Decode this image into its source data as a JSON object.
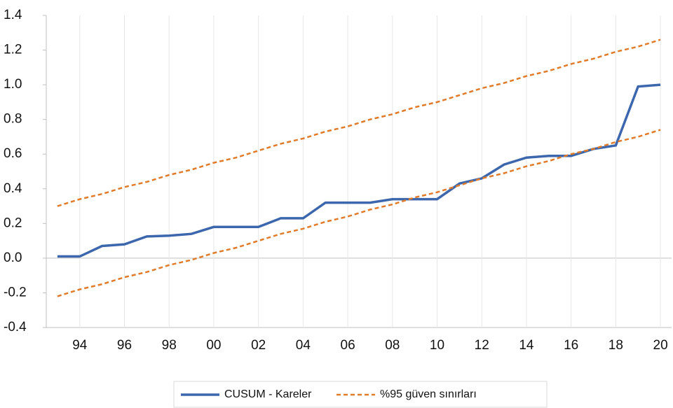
{
  "chart_data": {
    "type": "line",
    "categories": [
      null,
      "94",
      null,
      "96",
      null,
      "98",
      null,
      "00",
      null,
      "02",
      null,
      "04",
      null,
      "06",
      null,
      "08",
      null,
      "10",
      null,
      "12",
      null,
      "14",
      null,
      "16",
      null,
      "18",
      null,
      "20"
    ],
    "series": [
      {
        "name": "CUSUM - Kareler",
        "color": "#3d67ac",
        "dash": "solid",
        "values": [
          0.01,
          0.01,
          0.07,
          0.08,
          0.125,
          0.13,
          0.14,
          0.18,
          0.18,
          0.18,
          0.23,
          0.23,
          0.32,
          0.32,
          0.32,
          0.34,
          0.34,
          0.34,
          0.43,
          0.46,
          0.54,
          0.58,
          0.59,
          0.59,
          0.63,
          0.65,
          0.99,
          1.0
        ]
      },
      {
        "name": "%95 güven sınırları",
        "color": "#e07b2a",
        "dash": "dashed",
        "upper": [
          0.3,
          0.34,
          0.37,
          0.41,
          0.44,
          0.48,
          0.51,
          0.55,
          0.58,
          0.62,
          0.66,
          0.69,
          0.73,
          0.76,
          0.8,
          0.83,
          0.87,
          0.9,
          0.94,
          0.98,
          1.01,
          1.05,
          1.08,
          1.12,
          1.15,
          1.19,
          1.22,
          1.26
        ],
        "lower": [
          -0.22,
          -0.18,
          -0.15,
          -0.11,
          -0.08,
          -0.04,
          -0.01,
          0.03,
          0.06,
          0.1,
          0.14,
          0.17,
          0.21,
          0.24,
          0.28,
          0.31,
          0.35,
          0.38,
          0.42,
          0.46,
          0.49,
          0.53,
          0.56,
          0.6,
          0.63,
          0.67,
          0.7,
          0.74
        ]
      }
    ],
    "ylim": [
      -0.4,
      1.4
    ],
    "yticks": [
      -0.4,
      -0.2,
      {
        "value": 0,
        "label": "0.0"
      },
      0.2,
      0.4,
      0.6,
      0.8,
      {
        "value": 1,
        "label": "1.0"
      },
      1.2,
      1.4
    ],
    "grid": "x",
    "legend": "bottom"
  }
}
